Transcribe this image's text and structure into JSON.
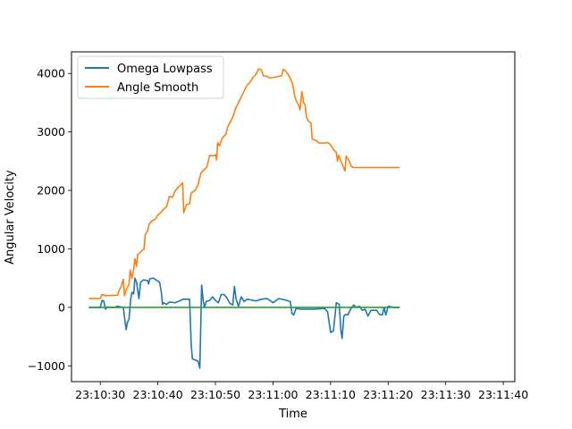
{
  "chart_data": {
    "type": "line",
    "title": "",
    "xlabel": "Time",
    "ylabel": "Angular Velocity",
    "xlim": [
      "23:10:25",
      "23:11:42"
    ],
    "ylim": [
      -1270,
      4370
    ],
    "x_ticks": [
      "23:10:30",
      "23:10:40",
      "23:10:50",
      "23:11:00",
      "23:11:10",
      "23:11:20",
      "23:11:30",
      "23:11:40"
    ],
    "y_ticks": [
      -1000,
      0,
      1000,
      2000,
      3000,
      4000
    ],
    "y_tick_labels": [
      "−1000",
      "0",
      "1000",
      "2000",
      "3000",
      "4000"
    ],
    "grid": false,
    "legend_position": "upper-left",
    "legend": [
      "Omega Lowpass",
      "Angle Smooth"
    ],
    "series": [
      {
        "name": "Omega Lowpass",
        "color": "#1f77b4",
        "points": [
          [
            "23:10:28",
            0
          ],
          [
            "23:10:30",
            0
          ],
          [
            "23:10:30.3",
            120
          ],
          [
            "23:10:30.6",
            110
          ],
          [
            "23:10:30.9",
            -30
          ],
          [
            "23:10:31.2",
            10
          ],
          [
            "23:10:31.6",
            0
          ],
          [
            "23:10:32.5",
            0
          ],
          [
            "23:10:33",
            20
          ],
          [
            "23:10:34",
            0
          ],
          [
            "23:10:34.3",
            -240
          ],
          [
            "23:10:34.5",
            -380
          ],
          [
            "23:10:34.7",
            -260
          ],
          [
            "23:10:35",
            -200
          ],
          [
            "23:10:35.3",
            150
          ],
          [
            "23:10:35.5",
            260
          ],
          [
            "23:10:35.8",
            230
          ],
          [
            "23:10:36",
            500
          ],
          [
            "23:10:36.3",
            430
          ],
          [
            "23:10:36.7",
            150
          ],
          [
            "23:10:37",
            430
          ],
          [
            "23:10:37.5",
            470
          ],
          [
            "23:10:38.2",
            460
          ],
          [
            "23:10:38.4",
            400
          ],
          [
            "23:10:38.6",
            490
          ],
          [
            "23:10:39.2",
            500
          ],
          [
            "23:10:39.7",
            470
          ],
          [
            "23:10:40.3",
            430
          ],
          [
            "23:10:40.6",
            260
          ],
          [
            "23:10:40.8",
            50
          ],
          [
            "23:10:41",
            80
          ],
          [
            "23:10:41.5",
            50
          ],
          [
            "23:10:42",
            90
          ],
          [
            "23:10:43",
            80
          ],
          [
            "23:10:44",
            120
          ],
          [
            "23:10:44.3",
            140
          ],
          [
            "23:10:45.5",
            140
          ],
          [
            "23:10:45.8",
            -650
          ],
          [
            "23:10:46",
            -880
          ],
          [
            "23:10:47",
            -920
          ],
          [
            "23:10:47.3",
            -1040
          ],
          [
            "23:10:47.6",
            380
          ],
          [
            "23:10:47.9",
            100
          ],
          [
            "23:10:48.1",
            0
          ],
          [
            "23:10:48.4",
            100
          ],
          [
            "23:10:49",
            120
          ],
          [
            "23:10:49.5",
            180
          ],
          [
            "23:10:50",
            120
          ],
          [
            "23:10:50.5",
            80
          ],
          [
            "23:10:51",
            220
          ],
          [
            "23:10:51.5",
            220
          ],
          [
            "23:10:52",
            160
          ],
          [
            "23:10:52.5",
            70
          ],
          [
            "23:10:53",
            40
          ],
          [
            "23:10:53.3",
            360
          ],
          [
            "23:10:53.6",
            140
          ],
          [
            "23:10:54",
            20
          ],
          [
            "23:10:54.5",
            180
          ],
          [
            "23:10:55",
            100
          ],
          [
            "23:10:55.5",
            140
          ],
          [
            "23:10:56",
            130
          ],
          [
            "23:10:57",
            110
          ],
          [
            "23:10:58",
            140
          ],
          [
            "23:10:59",
            150
          ],
          [
            "23:11:00",
            80
          ],
          [
            "23:11:01",
            150
          ],
          [
            "23:11:02",
            130
          ],
          [
            "23:11:03",
            100
          ],
          [
            "23:11:03.3",
            -100
          ],
          [
            "23:11:03.6",
            -130
          ],
          [
            "23:11:04",
            -20
          ],
          [
            "23:11:05",
            -30
          ],
          [
            "23:11:07",
            -30
          ],
          [
            "23:11:09",
            -20
          ],
          [
            "23:11:09.5",
            -80
          ],
          [
            "23:11:10",
            -430
          ],
          [
            "23:11:10.5",
            -400
          ],
          [
            "23:11:11",
            80
          ],
          [
            "23:11:11.5",
            50
          ],
          [
            "23:11:11.8",
            -400
          ],
          [
            "23:11:12",
            -530
          ],
          [
            "23:11:12.3",
            -150
          ],
          [
            "23:11:12.6",
            -120
          ],
          [
            "23:11:13",
            -130
          ],
          [
            "23:11:13.5",
            -30
          ],
          [
            "23:11:14",
            40
          ],
          [
            "23:11:14.5",
            0
          ],
          [
            "23:11:15",
            20
          ],
          [
            "23:11:15.5",
            -50
          ],
          [
            "23:11:16",
            -30
          ],
          [
            "23:11:16.5",
            -150
          ],
          [
            "23:11:17",
            -50
          ],
          [
            "23:11:18",
            -50
          ],
          [
            "23:11:18.5",
            -120
          ],
          [
            "23:11:19",
            -130
          ],
          [
            "23:11:19.3",
            0
          ],
          [
            "23:11:19.6",
            -130
          ],
          [
            "23:11:20",
            20
          ],
          [
            "23:11:21",
            0
          ],
          [
            "23:11:22",
            0
          ]
        ]
      },
      {
        "name": "Angle Smooth",
        "color": "#ff7f0e",
        "points": [
          [
            "23:10:28",
            150
          ],
          [
            "23:10:30",
            150
          ],
          [
            "23:10:30.3",
            220
          ],
          [
            "23:10:31",
            200
          ],
          [
            "23:10:33",
            210
          ],
          [
            "23:10:33.3",
            300
          ],
          [
            "23:10:33.6",
            350
          ],
          [
            "23:10:34",
            480
          ],
          [
            "23:10:34.2",
            200
          ],
          [
            "23:10:34.5",
            300
          ],
          [
            "23:10:35",
            400
          ],
          [
            "23:10:35.2",
            640
          ],
          [
            "23:10:35.5",
            500
          ],
          [
            "23:10:35.8",
            650
          ],
          [
            "23:10:36",
            830
          ],
          [
            "23:10:36.3",
            700
          ],
          [
            "23:10:36.5",
            900
          ],
          [
            "23:10:37",
            950
          ],
          [
            "23:10:37.6",
            1000
          ],
          [
            "23:10:37.8",
            1250
          ],
          [
            "23:10:38.2",
            1300
          ],
          [
            "23:10:38.5",
            1430
          ],
          [
            "23:10:39",
            1480
          ],
          [
            "23:10:39.6",
            1510
          ],
          [
            "23:10:40",
            1580
          ],
          [
            "23:10:40.5",
            1620
          ],
          [
            "23:10:41",
            1680
          ],
          [
            "23:10:41.5",
            1720
          ],
          [
            "23:10:42",
            1900
          ],
          [
            "23:10:42.5",
            1880
          ],
          [
            "23:10:43",
            1990
          ],
          [
            "23:10:43.5",
            2050
          ],
          [
            "23:10:44",
            2100
          ],
          [
            "23:10:44.3",
            2130
          ],
          [
            "23:10:44.5",
            1620
          ],
          [
            "23:10:45",
            1760
          ],
          [
            "23:10:45.5",
            1770
          ],
          [
            "23:10:45.8",
            1960
          ],
          [
            "23:10:46.5",
            2000
          ],
          [
            "23:10:47",
            2100
          ],
          [
            "23:10:47.5",
            2300
          ],
          [
            "23:10:48",
            2350
          ],
          [
            "23:10:48.5",
            2400
          ],
          [
            "23:10:49",
            2600
          ],
          [
            "23:10:49.5",
            2590
          ],
          [
            "23:10:50",
            2610
          ],
          [
            "23:10:50.2",
            2520
          ],
          [
            "23:10:50.4",
            2820
          ],
          [
            "23:10:50.7",
            2760
          ],
          [
            "23:10:51.2",
            2900
          ],
          [
            "23:10:51.8",
            2960
          ],
          [
            "23:10:52.2",
            3100
          ],
          [
            "23:10:53",
            3250
          ],
          [
            "23:10:53.5",
            3400
          ],
          [
            "23:10:54",
            3500
          ],
          [
            "23:10:54.5",
            3600
          ],
          [
            "23:10:55",
            3700
          ],
          [
            "23:10:55.5",
            3800
          ],
          [
            "23:10:56",
            3850
          ],
          [
            "23:10:56.5",
            3930
          ],
          [
            "23:10:57",
            3980
          ],
          [
            "23:10:57.5",
            4080
          ],
          [
            "23:10:58",
            4060
          ],
          [
            "23:10:58.3",
            3960
          ],
          [
            "23:10:59",
            3950
          ],
          [
            "23:10:59.4",
            3920
          ],
          [
            "23:11:00.5",
            3940
          ],
          [
            "23:11:01",
            3950
          ],
          [
            "23:11:01.5",
            3960
          ],
          [
            "23:11:01.8",
            4070
          ],
          [
            "23:11:02.2",
            4040
          ],
          [
            "23:11:02.6",
            3990
          ],
          [
            "23:11:03",
            3920
          ],
          [
            "23:11:03.4",
            3820
          ],
          [
            "23:11:03.8",
            3600
          ],
          [
            "23:11:04.2",
            3500
          ],
          [
            "23:11:04.5",
            3450
          ],
          [
            "23:11:04.7",
            3380
          ],
          [
            "23:11:05",
            3690
          ],
          [
            "23:11:05.3",
            3500
          ],
          [
            "23:11:05.6",
            3460
          ],
          [
            "23:11:05.8",
            3250
          ],
          [
            "23:11:06.2",
            3180
          ],
          [
            "23:11:06.6",
            3150
          ],
          [
            "23:11:06.8",
            2880
          ],
          [
            "23:11:07.5",
            2850
          ],
          [
            "23:11:08",
            2810
          ],
          [
            "23:11:09",
            2810
          ],
          [
            "23:11:09.5",
            2820
          ],
          [
            "23:11:10",
            2780
          ],
          [
            "23:11:10.5",
            2700
          ],
          [
            "23:11:11",
            2650
          ],
          [
            "23:11:11.2",
            2500
          ],
          [
            "23:11:11.4",
            2600
          ],
          [
            "23:11:12",
            2450
          ],
          [
            "23:11:12.5",
            2330
          ],
          [
            "23:11:12.7",
            2590
          ],
          [
            "23:11:13.2",
            2510
          ],
          [
            "23:11:13.6",
            2410
          ],
          [
            "23:11:14",
            2390
          ],
          [
            "23:11:15",
            2390
          ],
          [
            "23:11:16",
            2390
          ],
          [
            "23:11:22",
            2390
          ]
        ]
      },
      {
        "name": "",
        "color": "#2ca02c",
        "points": [
          [
            "23:10:28",
            0
          ],
          [
            "23:11:22",
            0
          ]
        ]
      }
    ]
  }
}
